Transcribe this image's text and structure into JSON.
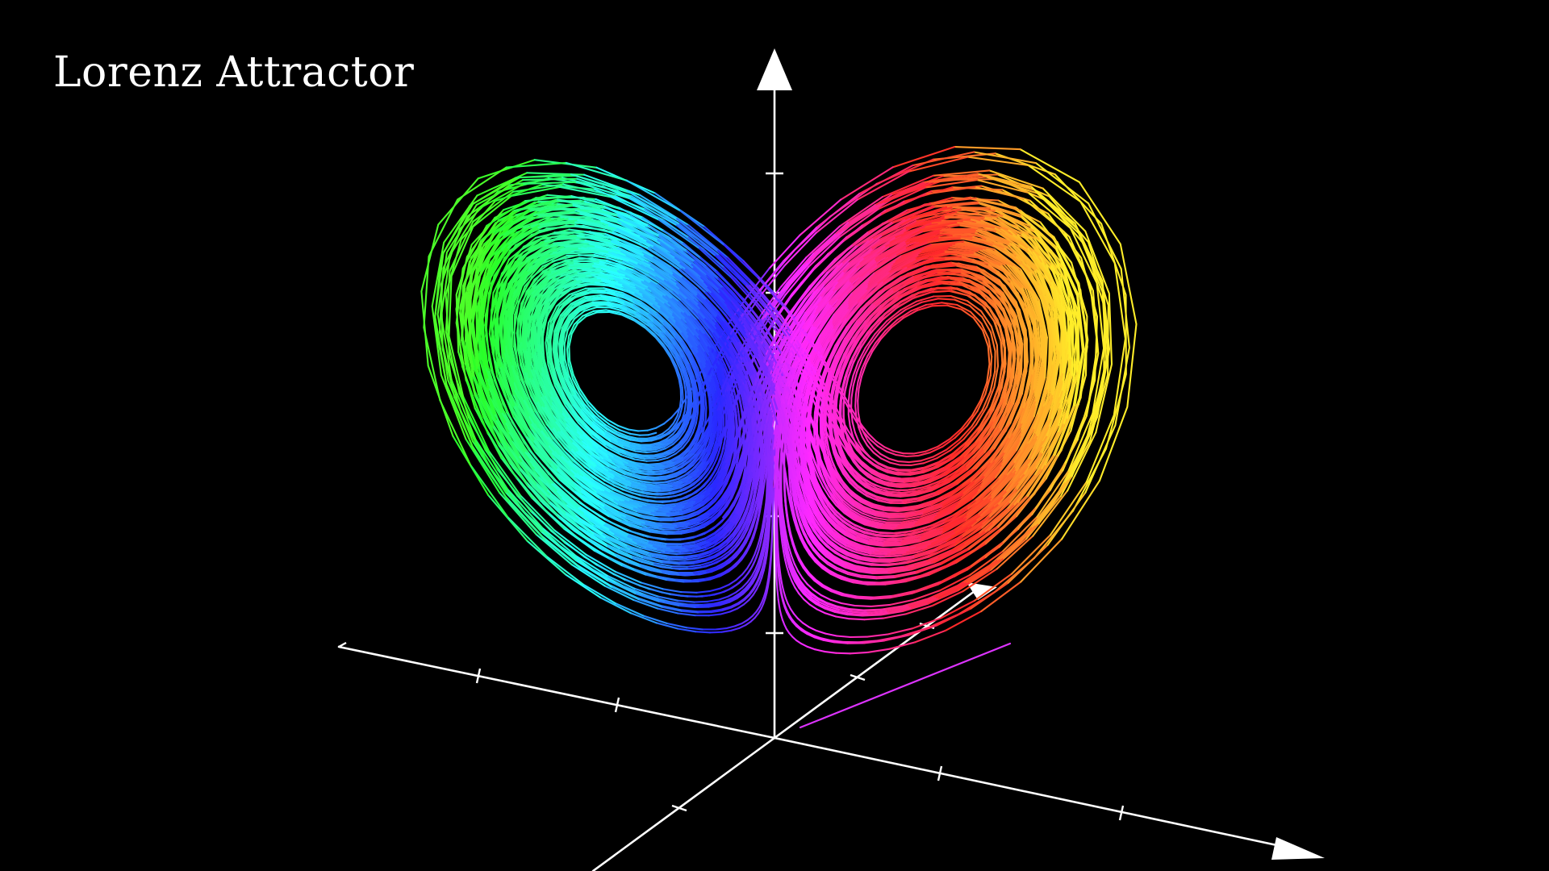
{
  "title": "Lorenz Attractor",
  "colors": {
    "background": "#000000",
    "axes": "#ffffff",
    "title": "#ffffff"
  },
  "icons": {
    "arrowhead": "triangle"
  }
}
